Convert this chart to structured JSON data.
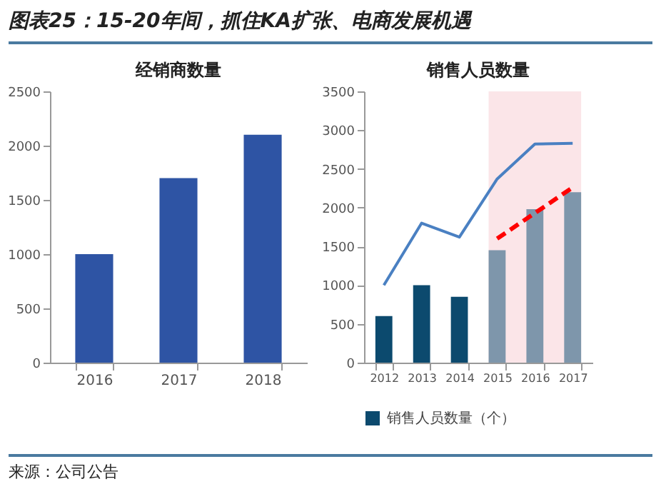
{
  "chart_data": [
    {
      "type": "other",
      "title": "图表25：15-20年间，抓住KA扩张、电商发展机遇",
      "annotations": [
        "来源：公司公告"
      ]
    },
    {
      "type": "bar",
      "title": "经销商数量",
      "categories": [
        "2016",
        "2017",
        "2018"
      ],
      "values": [
        1000,
        1700,
        2100
      ],
      "color": "#2e54a4",
      "ylim": [
        0,
        2500
      ],
      "yticks": [
        0,
        500,
        1000,
        1500,
        2000,
        2500
      ],
      "grid": false
    },
    {
      "type": "bar",
      "title": "销售人员数量",
      "categories": [
        "2012",
        "2013",
        "2014",
        "2015",
        "2016",
        "2017"
      ],
      "ylim": [
        0,
        3500
      ],
      "yticks": [
        0,
        500,
        1000,
        1500,
        2000,
        2500,
        3000,
        3500
      ],
      "grid": false,
      "legend": "bottom",
      "series": [
        {
          "name": "销售人员数量（个）",
          "type": "bar",
          "colors": [
            "#0c4a6e",
            "#0c4a6e",
            "#0c4a6e",
            "#7e96ab",
            "#7e96ab",
            "#7e96ab"
          ],
          "values": [
            600,
            1000,
            850,
            1450,
            1980,
            2200
          ]
        },
        {
          "type": "line",
          "color": "#4a80c2",
          "values": [
            1000,
            1800,
            1620,
            2370,
            2820,
            2830
          ]
        },
        {
          "type": "line",
          "color": "#ff0000",
          "line_style": "dashed",
          "values": [
            null,
            null,
            null,
            1600,
            1930,
            2260
          ]
        }
      ],
      "bands": [
        {
          "axis": "x",
          "from": "2015",
          "to": "2017",
          "color": "#fbe5e8"
        }
      ]
    }
  ]
}
